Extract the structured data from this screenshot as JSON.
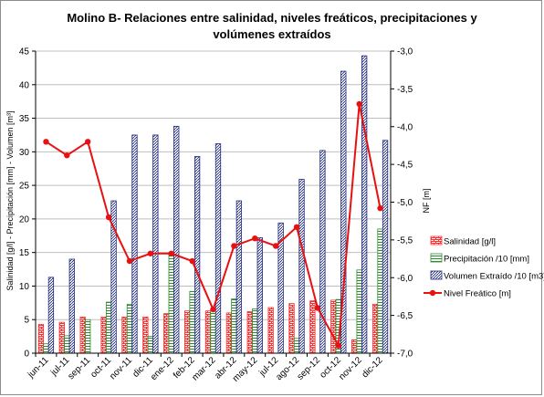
{
  "chart_data": {
    "type": "bar",
    "title_lines": [
      "Molino B- Relaciones entre salinidad,  niveles freáticos, precipitaciones  y",
      "volúmenes extraídos"
    ],
    "ylabel": "Salinidad [g/l] - Precipitación [mm] - Volumen [m³]",
    "y2label": "NF [m]",
    "ylim": [
      0,
      45
    ],
    "yticks": [
      "0",
      "5",
      "10",
      "15",
      "20",
      "25",
      "30",
      "35",
      "40",
      "45"
    ],
    "y2lim": [
      -7.0,
      -3.0
    ],
    "y2ticks": [
      "-3,0",
      "-3,5",
      "-4,0",
      "-4,5",
      "-5,0",
      "-5,5",
      "-6,0",
      "-6,5",
      "-7,0"
    ],
    "categories": [
      "jun-11",
      "jul-11",
      "sep-11",
      "oct-11",
      "nov-11",
      "dic-11",
      "ene-12",
      "feb-12",
      "mar-12",
      "abr-12",
      "may-12",
      "jul-12",
      "ago-12",
      "sep-12",
      "oct-12",
      "nov-12",
      "dic-12"
    ],
    "legend_position": "right",
    "series": [
      {
        "name": "Salinidad [g/l]",
        "kind": "bar",
        "axis": "left",
        "color": "#ff3030",
        "pattern": "brick",
        "values": [
          4.3,
          4.6,
          5.4,
          5.4,
          5.4,
          5.4,
          5.9,
          6.3,
          6.3,
          6.0,
          6.2,
          6.8,
          7.4,
          7.8,
          7.9,
          2.0,
          7.3
        ]
      },
      {
        "name": "Precipitación /10 [mm]",
        "kind": "bar",
        "axis": "left",
        "color": "#2e8b2e",
        "pattern": "hlines",
        "values": [
          1.4,
          2.6,
          5.0,
          7.6,
          7.3,
          2.5,
          15.0,
          9.2,
          6.5,
          8.1,
          6.6,
          0.0,
          2.2,
          0.0,
          8.0,
          12.4,
          18.5
        ]
      },
      {
        "name": "Volumen Extraído /10 [m3]",
        "kind": "bar",
        "axis": "left",
        "color": "#1f2a7a",
        "pattern": "diag",
        "values": [
          11.3,
          14.0,
          0.0,
          22.7,
          32.5,
          32.5,
          33.8,
          29.3,
          31.2,
          22.7,
          17.2,
          19.4,
          25.9,
          30.2,
          42.0,
          44.3,
          31.7
        ]
      },
      {
        "name": "Nivel Freático [m]",
        "kind": "line",
        "axis": "right",
        "color": "#e81010",
        "values": [
          -4.2,
          -4.38,
          -4.2,
          -5.2,
          -5.78,
          -5.68,
          -5.68,
          -5.78,
          -6.42,
          -5.58,
          -5.48,
          -5.58,
          -5.33,
          -6.4,
          -6.9,
          -3.7,
          -5.08
        ]
      }
    ]
  }
}
